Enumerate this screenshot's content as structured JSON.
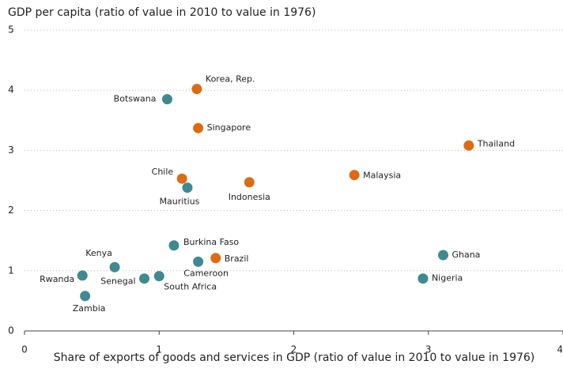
{
  "chart_data": {
    "type": "scatter",
    "title": "GDP per capita (ratio of value in 2010 to value in 1976)",
    "x_label": "Share of exports of goods and services in GDP (ratio of value in 2010 to value in 1976)",
    "xlim": [
      0,
      4
    ],
    "xticks": [
      0,
      1,
      2,
      3,
      4
    ],
    "ylim": [
      0,
      5
    ],
    "yticks": [
      0,
      1,
      2,
      3,
      4,
      5
    ],
    "grid": true,
    "series": [
      {
        "color": "#df6a12",
        "labels": [
          "Korea, Rep.",
          "Singapore",
          "Thailand",
          "Chile",
          "Indonesia",
          "Malaysia",
          "Brazil"
        ],
        "x": [
          1.28,
          1.29,
          3.3,
          1.17,
          1.67,
          2.45,
          1.42
        ],
        "values": [
          4.02,
          3.37,
          3.08,
          2.53,
          2.47,
          2.59,
          1.21
        ]
      },
      {
        "color": "#3f8990",
        "labels": [
          "Botswana",
          "Mauritius",
          "Burkina Faso",
          "Cameroon",
          "Kenya",
          "Rwanda",
          "Senegal",
          "South Africa",
          "Zambia",
          "Ghana",
          "Nigeria"
        ],
        "x": [
          1.06,
          1.21,
          1.11,
          1.29,
          0.67,
          0.43,
          0.89,
          1.0,
          0.45,
          3.11,
          2.96
        ],
        "values": [
          3.85,
          2.38,
          1.42,
          1.15,
          1.06,
          0.92,
          0.87,
          0.91,
          0.58,
          1.26,
          0.87
        ]
      }
    ]
  }
}
